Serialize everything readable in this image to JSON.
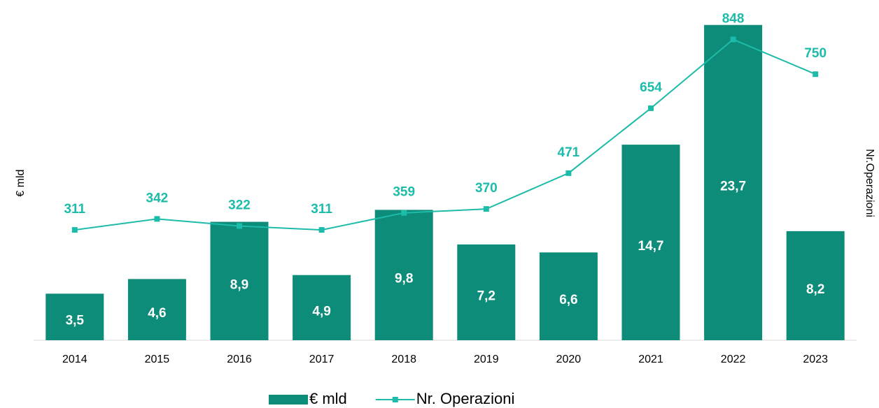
{
  "chart_data": {
    "type": "combo",
    "categories": [
      "2014",
      "2015",
      "2016",
      "2017",
      "2018",
      "2019",
      "2020",
      "2021",
      "2022",
      "2023"
    ],
    "series": [
      {
        "name": "€ mld",
        "type": "bar",
        "color": "#0e8c7a",
        "values": [
          3.5,
          4.6,
          8.9,
          4.9,
          9.8,
          7.2,
          6.6,
          14.7,
          23.7,
          8.2
        ],
        "value_labels": [
          "3,5",
          "4,6",
          "8,9",
          "4,9",
          "9,8",
          "7,2",
          "6,6",
          "14,7",
          "23,7",
          "8,2"
        ]
      },
      {
        "name": "Nr. Operazioni",
        "type": "line",
        "axis": "y2",
        "color": "#1dbba9",
        "values": [
          311,
          342,
          322,
          311,
          359,
          370,
          471,
          654,
          848,
          750
        ]
      }
    ],
    "y_label": "€ mld",
    "y2_label": "Nr.Operazioni",
    "ylim": [
      0,
      24
    ],
    "y2lim": [
      0,
      900
    ],
    "legend": "bottom"
  }
}
